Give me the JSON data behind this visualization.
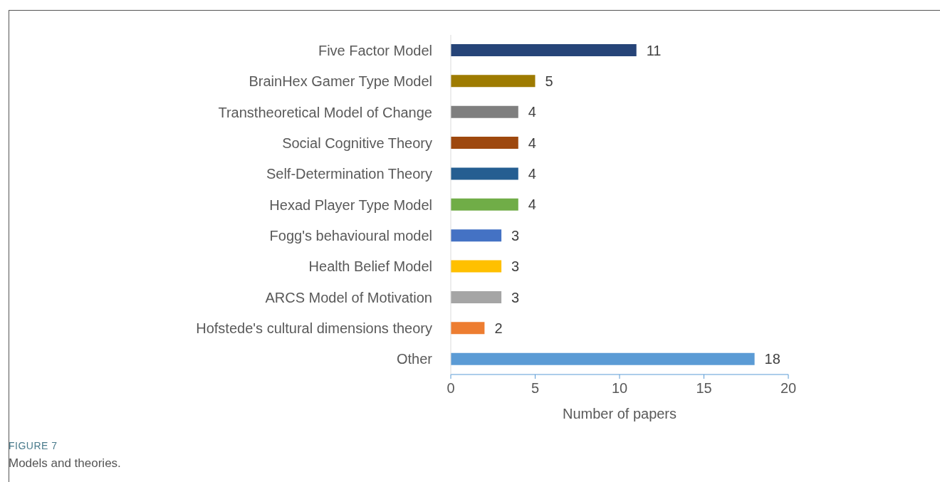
{
  "chart_data": {
    "type": "bar",
    "orientation": "horizontal",
    "xlabel": "Number of papers",
    "categories": [
      "Five Factor Model",
      "BrainHex Gamer Type Model",
      "Transtheoretical Model of Change",
      "Social Cognitive Theory",
      "Self-Determination Theory",
      "Hexad Player Type Model",
      "Fogg's behavioural model",
      "Health Belief Model",
      "ARCS Model of Motivation",
      "Hofstede's cultural dimensions theory",
      "Other"
    ],
    "values": [
      11,
      5,
      4,
      4,
      4,
      4,
      3,
      3,
      3,
      2,
      18
    ],
    "colors": [
      "#264478",
      "#9e7b00",
      "#7f7f7f",
      "#9e480e",
      "#255e91",
      "#70ad47",
      "#4472c4",
      "#ffc000",
      "#a5a5a5",
      "#ed7d31",
      "#5b9bd5"
    ],
    "xlim": [
      0,
      20
    ],
    "xticks": [
      0,
      5,
      10,
      15,
      20
    ],
    "data_labels": true,
    "annotations": [
      "FIGURE 7",
      "Models and theories."
    ]
  }
}
